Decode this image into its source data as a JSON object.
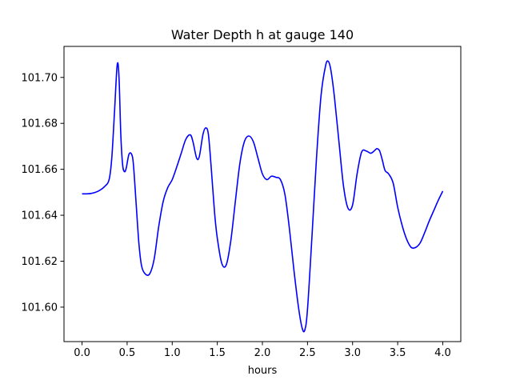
{
  "chart_data": {
    "type": "line",
    "title": "Water Depth h at gauge 140",
    "xlabel": "hours",
    "ylabel": "",
    "xlim": [
      -0.2,
      4.2
    ],
    "ylim": [
      101.585,
      101.7135
    ],
    "x_ticks": [
      0.0,
      0.5,
      1.0,
      1.5,
      2.0,
      2.5,
      3.0,
      3.5,
      4.0
    ],
    "x_tick_labels": [
      "0.0",
      "0.5",
      "1.0",
      "1.5",
      "2.0",
      "2.5",
      "3.0",
      "3.5",
      "4.0"
    ],
    "y_ticks": [
      101.6,
      101.62,
      101.64,
      101.66,
      101.68,
      101.7
    ],
    "y_tick_labels": [
      "101.60",
      "101.62",
      "101.64",
      "101.66",
      "101.68",
      "101.70"
    ],
    "grid": false,
    "legend": "none",
    "series": [
      {
        "color": "#0000ff",
        "x": [
          0.0,
          0.1,
          0.18,
          0.25,
          0.3,
          0.33,
          0.36,
          0.39,
          0.41,
          0.43,
          0.45,
          0.47,
          0.49,
          0.52,
          0.55,
          0.57,
          0.6,
          0.63,
          0.66,
          0.7,
          0.75,
          0.8,
          0.85,
          0.9,
          0.95,
          1.0,
          1.05,
          1.1,
          1.15,
          1.2,
          1.23,
          1.27,
          1.3,
          1.34,
          1.37,
          1.4,
          1.43,
          1.47,
          1.5,
          1.55,
          1.6,
          1.65,
          1.7,
          1.75,
          1.8,
          1.85,
          1.9,
          1.95,
          2.0,
          2.05,
          2.1,
          2.15,
          2.2,
          2.25,
          2.3,
          2.35,
          2.4,
          2.44,
          2.47,
          2.5,
          2.55,
          2.6,
          2.65,
          2.7,
          2.73,
          2.76,
          2.8,
          2.85,
          2.9,
          2.95,
          3.0,
          3.05,
          3.1,
          3.15,
          3.2,
          3.24,
          3.27,
          3.3,
          3.33,
          3.36,
          3.4,
          3.45,
          3.5,
          3.55,
          3.6,
          3.65,
          3.7,
          3.75,
          3.8,
          3.85,
          3.9,
          3.95,
          4.0
        ],
        "y": [
          101.6493,
          101.6495,
          101.6505,
          101.6525,
          101.6555,
          101.665,
          101.685,
          101.7055,
          101.7,
          101.675,
          101.662,
          101.659,
          101.6605,
          101.6665,
          101.6665,
          101.662,
          101.645,
          101.628,
          101.618,
          101.6145,
          101.6145,
          101.621,
          101.635,
          101.646,
          101.652,
          101.6555,
          101.661,
          101.667,
          101.673,
          101.675,
          101.672,
          101.665,
          101.6655,
          101.675,
          101.678,
          101.6755,
          101.662,
          101.641,
          101.63,
          101.619,
          101.6185,
          101.629,
          101.646,
          101.6625,
          101.672,
          101.6745,
          101.672,
          101.665,
          101.658,
          101.6555,
          101.657,
          101.6565,
          101.6555,
          101.649,
          101.634,
          101.616,
          101.6,
          101.591,
          101.59,
          101.599,
          101.631,
          101.665,
          101.692,
          101.705,
          101.707,
          101.703,
          101.691,
          101.6715,
          101.6525,
          101.643,
          101.6445,
          101.658,
          101.6675,
          101.668,
          101.667,
          101.668,
          101.669,
          101.668,
          101.664,
          101.6595,
          101.658,
          101.654,
          101.6435,
          101.6355,
          101.6295,
          101.626,
          101.626,
          101.628,
          101.6325,
          101.6375,
          101.642,
          101.6465,
          101.6505
        ]
      }
    ]
  }
}
